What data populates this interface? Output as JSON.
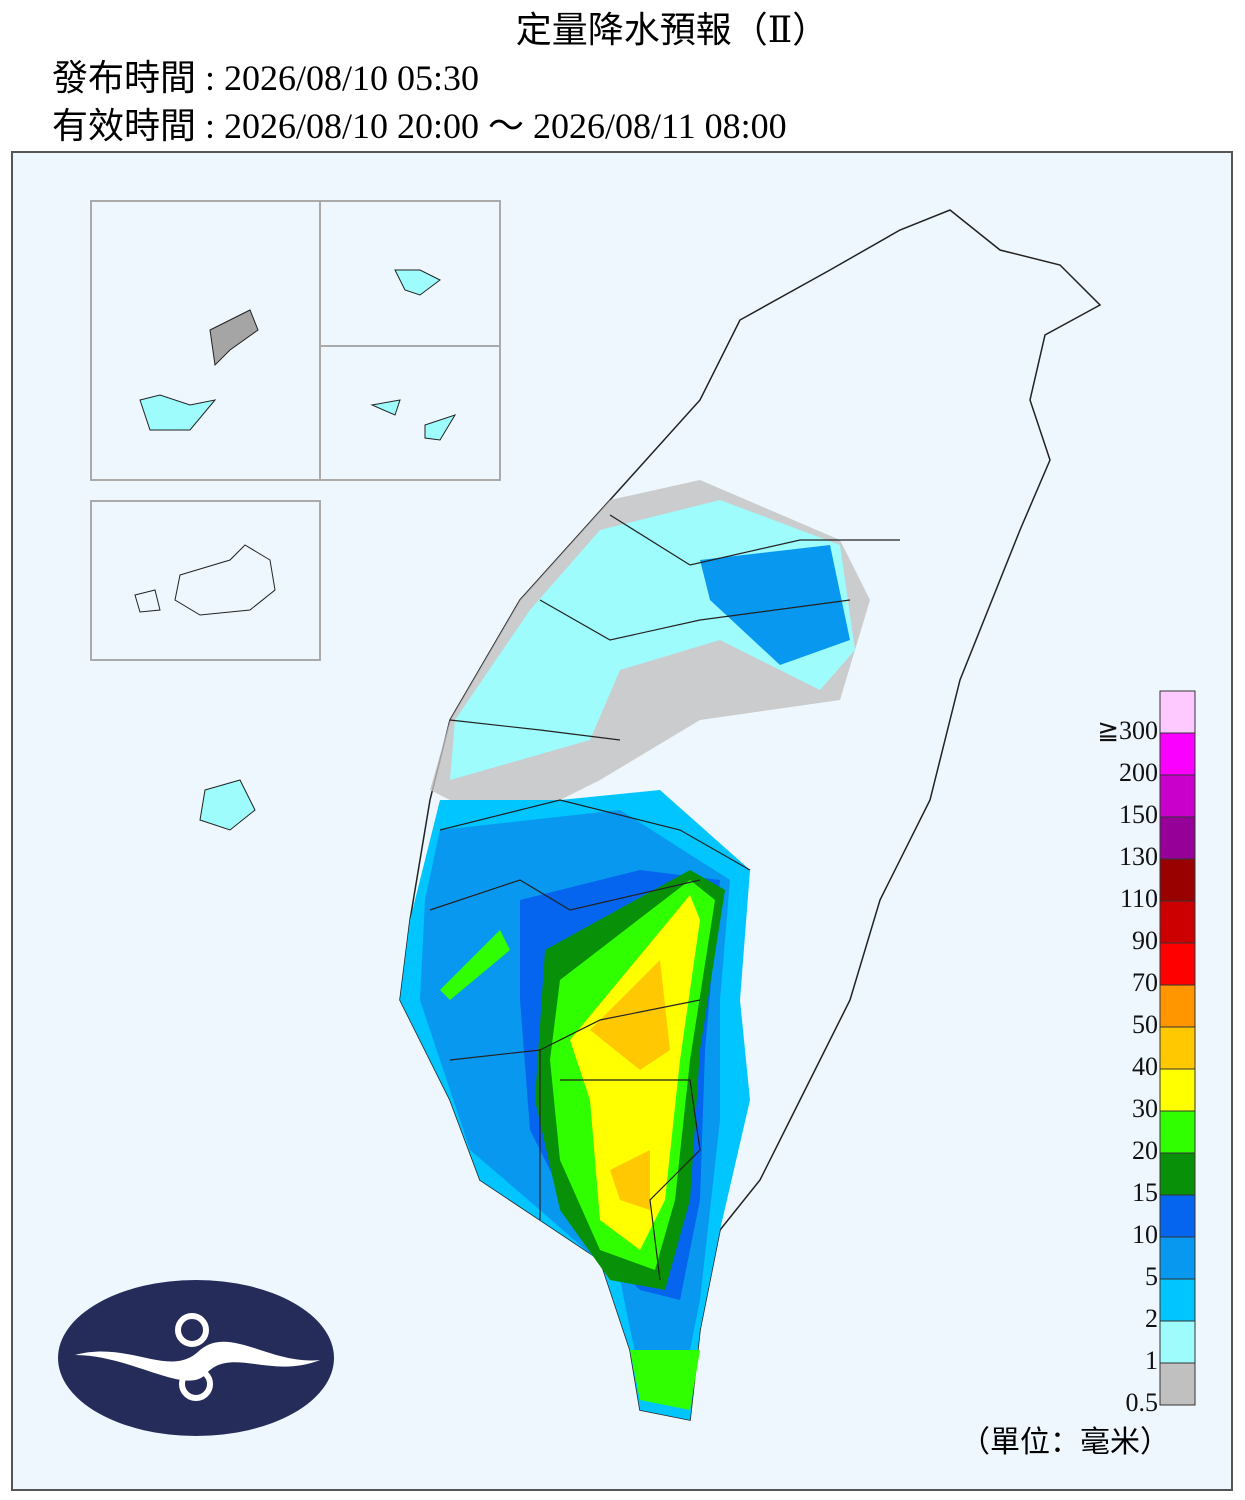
{
  "header": {
    "title": "定量降水預報（Ⅱ）",
    "issued": "發布時間 : 2026/08/10 05:30",
    "valid": "有效時間 : 2026/08/10 20:00 ～ 2026/08/11 08:00"
  },
  "legend": {
    "labels": [
      0.5,
      1,
      2,
      5,
      10,
      15,
      20,
      30,
      40,
      50,
      70,
      90,
      110,
      130,
      150,
      200,
      {
        "value": 300,
        "label": "≧300"
      }
    ],
    "colors": [
      "#c0c0c0",
      "#9ffcfc",
      "#00c5ff",
      "#0898f0",
      "#0565ee",
      "#089108",
      "#30ff00",
      "#ffff00",
      "#ffc800",
      "#ff9600",
      "#ff0000",
      "#cc0000",
      "#990000",
      "#960099",
      "#c900cc",
      "#fa00ff",
      "#fdc9fe"
    ],
    "unit": "（單位：毫米）"
  }
}
